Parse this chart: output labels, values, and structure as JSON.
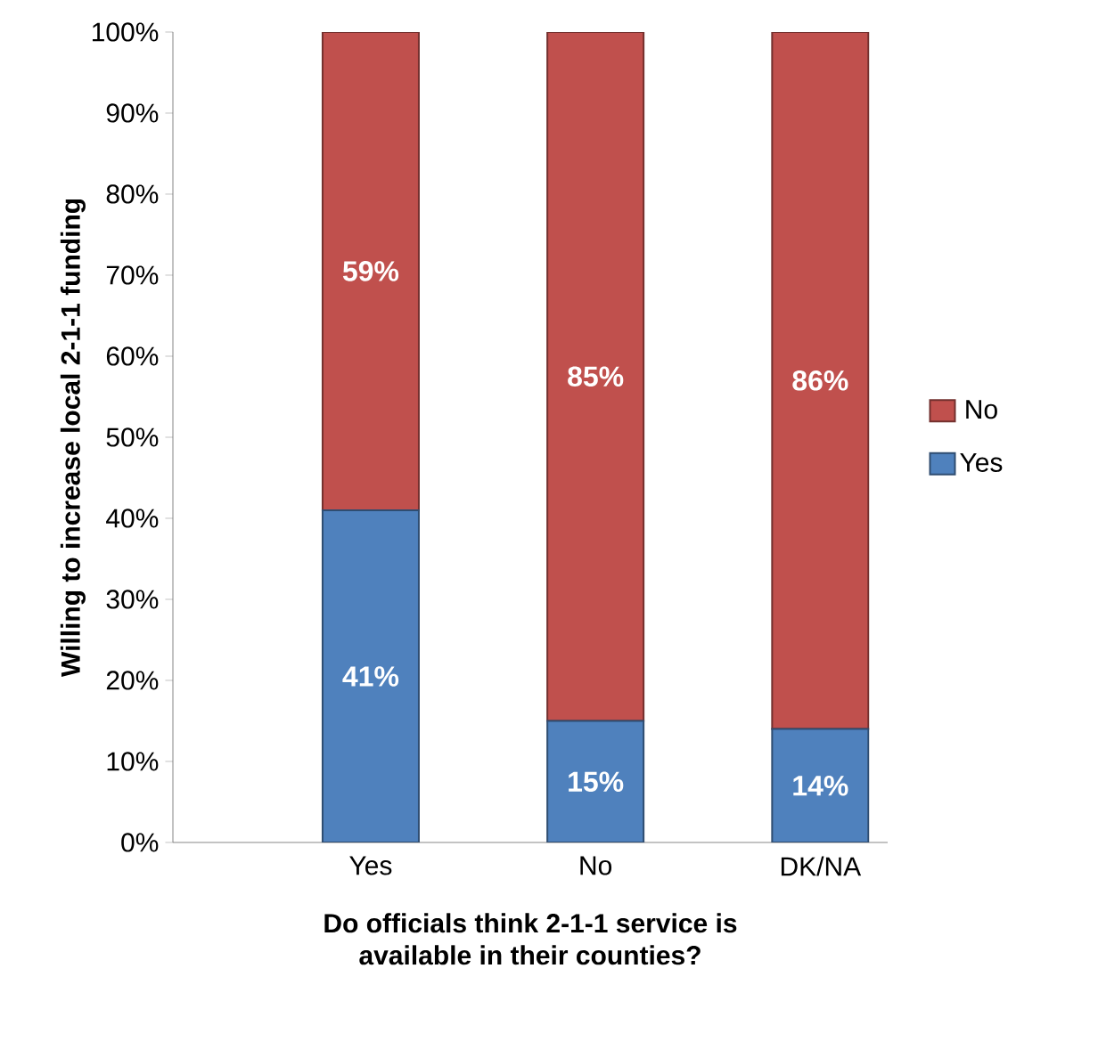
{
  "chart_data": {
    "type": "bar",
    "stacked": true,
    "xlabel": "Do officials think 2-1-1 service is\navailable in their counties?",
    "ylabel": "Willing to increase local 2-1-1 funding",
    "categories": [
      "Yes",
      "No",
      "DK/NA"
    ],
    "series": [
      {
        "name": "Yes",
        "color": "#4f81bd",
        "values": [
          41,
          15,
          14
        ],
        "value_labels": [
          "41%",
          "15%",
          "14%"
        ]
      },
      {
        "name": "No",
        "color": "#c0504d",
        "values": [
          59,
          85,
          86
        ],
        "value_labels": [
          "59%",
          "85%",
          "86%"
        ]
      }
    ],
    "ylim": [
      0,
      100
    ],
    "yticks": [
      {
        "value": 0,
        "label": "0%"
      },
      {
        "value": 10,
        "label": "10%"
      },
      {
        "value": 20,
        "label": "20%"
      },
      {
        "value": 30,
        "label": "30%"
      },
      {
        "value": 40,
        "label": "40%"
      },
      {
        "value": 50,
        "label": "50%"
      },
      {
        "value": 60,
        "label": "60%"
      },
      {
        "value": 70,
        "label": "70%"
      },
      {
        "value": 80,
        "label": "80%"
      },
      {
        "value": 90,
        "label": "90%"
      },
      {
        "value": 100,
        "label": "100%"
      }
    ],
    "legend": "right",
    "grid": false
  }
}
